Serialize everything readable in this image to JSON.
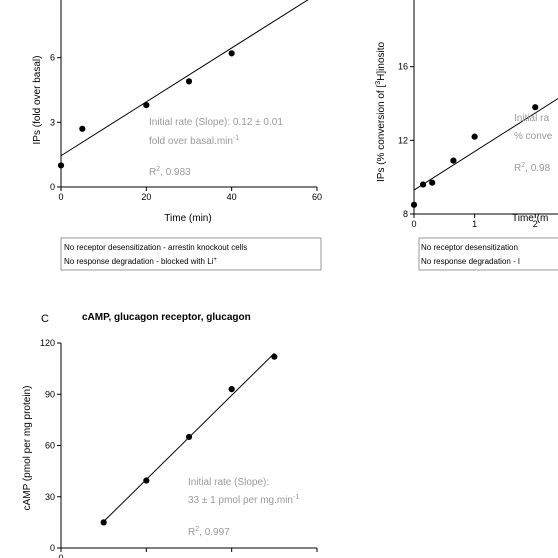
{
  "chart_data": [
    {
      "type": "scatter",
      "panel": "",
      "title": "",
      "xlabel": "Time (min)",
      "ylabel": "IPs (fold over basal)",
      "xlim": [
        0,
        60
      ],
      "ylim": [
        0,
        9
      ],
      "xticks": [
        "0",
        "20",
        "40",
        "60"
      ],
      "yticks": [
        "0",
        "3",
        "6"
      ],
      "points": [
        {
          "x": 0,
          "y": 1.0
        },
        {
          "x": 5,
          "y": 2.7
        },
        {
          "x": 20,
          "y": 3.8
        },
        {
          "x": 30,
          "y": 4.9
        },
        {
          "x": 40,
          "y": 6.2
        }
      ],
      "fit_line": {
        "x0": 0,
        "y0": 1.45,
        "x1": 60,
        "y1": 8.95
      },
      "annotation": {
        "rate_line1": "Initial rate (Slope): 0.12 ± 0.01",
        "rate_line2": "fold over basal.min",
        "rate_line2_sup": "-1",
        "r2_prefix": "R",
        "r2_sup": "2",
        "r2_value": ", 0.983"
      },
      "notes": [
        {
          "text": "No receptor desensitization - arrestin knockout cells",
          "sup": ""
        },
        {
          "text": "No response degradation - blocked with Li",
          "sup": "+"
        }
      ]
    },
    {
      "type": "scatter",
      "panel": "",
      "title": "",
      "xlabel": "Time (m",
      "ylabel": "IPs (% conversion of [3H]inosito",
      "ylabel_parts": {
        "pre": "IPs (% conversion of [",
        "sup": "3",
        "post": "H]inosito"
      },
      "xlim": [
        0,
        3.2
      ],
      "ylim": [
        8,
        20
      ],
      "xticks": [
        "0",
        "1",
        "2"
      ],
      "yticks": [
        "8",
        "12",
        "16"
      ],
      "points": [
        {
          "x": 0.0,
          "y": 8.5
        },
        {
          "x": 0.15,
          "y": 9.6
        },
        {
          "x": 0.3,
          "y": 9.7
        },
        {
          "x": 0.65,
          "y": 10.9
        },
        {
          "x": 1.0,
          "y": 12.2
        },
        {
          "x": 2.0,
          "y": 13.8
        }
      ],
      "fit_line": {
        "x0": 0,
        "y0": 9.3,
        "x1": 3.3,
        "y1": 16.2
      },
      "annotation": {
        "rate_line1": "Initial ra",
        "rate_line2": "% conve",
        "r2_prefix": "R",
        "r2_sup": "2",
        "r2_value": ", 0.98"
      },
      "notes": [
        {
          "text": "No receptor desensitization"
        },
        {
          "text": "No response degradation - l"
        }
      ]
    },
    {
      "type": "scatter",
      "panel": "C",
      "title": "cAMP, glucagon receptor, glucagon",
      "xlabel": "",
      "ylabel": "cAMP (pmol per mg protein)",
      "xlim": [
        0,
        3
      ],
      "ylim": [
        0,
        120
      ],
      "xticks": [
        "0",
        "",
        "",
        ""
      ],
      "yticks": [
        "0",
        "30",
        "60",
        "90",
        "120"
      ],
      "points": [
        {
          "x": 0.5,
          "y": 15
        },
        {
          "x": 1.0,
          "y": 39.5
        },
        {
          "x": 1.5,
          "y": 65
        },
        {
          "x": 2.0,
          "y": 93
        },
        {
          "x": 2.5,
          "y": 112
        }
      ],
      "fit_line": {
        "x0": 0.5,
        "y0": 15.5,
        "x1": 2.5,
        "y1": 114
      },
      "annotation": {
        "rate_line1": "Initial rate (Slope):",
        "rate_line2": "33 ± 1 pmol per mg.min",
        "rate_line2_sup": "-1",
        "r2_prefix": "R",
        "r2_sup": "2",
        "r2_value": ", 0.997"
      }
    }
  ]
}
